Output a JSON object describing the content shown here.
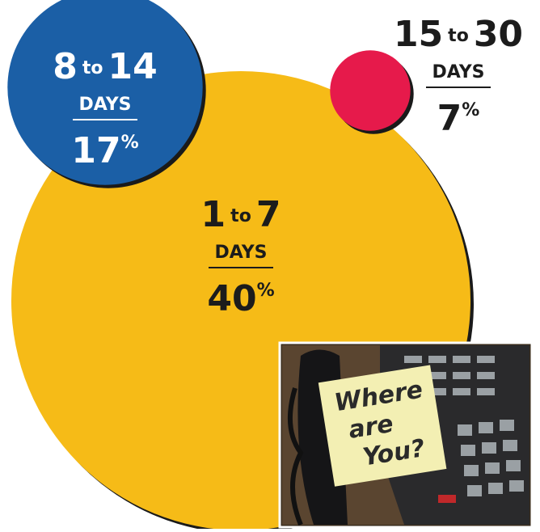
{
  "chart_data": {
    "type": "bubble",
    "categories": [
      "1 to 7",
      "8 to 14",
      "15 to 30"
    ],
    "unit": "DAYS",
    "values": [
      40,
      17,
      7
    ],
    "value_labels": [
      "40%",
      "17%",
      "7%"
    ],
    "colors": [
      "#f6bb17",
      "#1b5fa6",
      "#e61a4b"
    ],
    "label_colors": [
      "#1c1c1c",
      "#ffffff",
      "#1c1c1c"
    ]
  },
  "photo": {
    "note": [
      "Where",
      "are",
      "You?"
    ]
  }
}
